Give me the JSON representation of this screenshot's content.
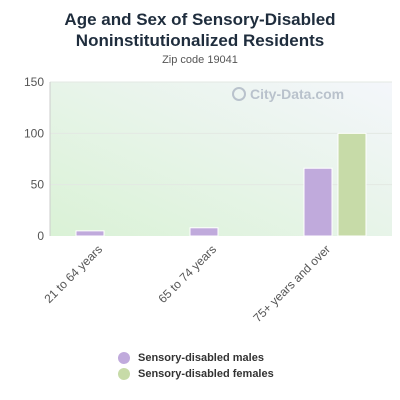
{
  "chart_data": {
    "type": "bar",
    "title": "Age and Sex of Sensory-Disabled Noninstitutionalized Residents",
    "subtitle": "Zip code 19041",
    "categories": [
      "21 to 64 years",
      "65 to 74 years",
      "75+ years and over"
    ],
    "series": [
      {
        "name": "Sensory-disabled males",
        "values": [
          5,
          8,
          66
        ]
      },
      {
        "name": "Sensory-disabled females",
        "values": [
          0,
          0,
          100
        ]
      }
    ],
    "y_ticks": [
      "0",
      "50",
      "100",
      "150"
    ],
    "ylim": [
      0,
      150
    ],
    "grid": true,
    "legend_position": "bottom"
  },
  "colors": {
    "males": "#c0aadc",
    "females": "#c7dba8",
    "plot_bg_top": "#f4f6fb",
    "plot_bg_bottom": "#daf2d6"
  },
  "watermark": {
    "text": "City-Data.com"
  }
}
